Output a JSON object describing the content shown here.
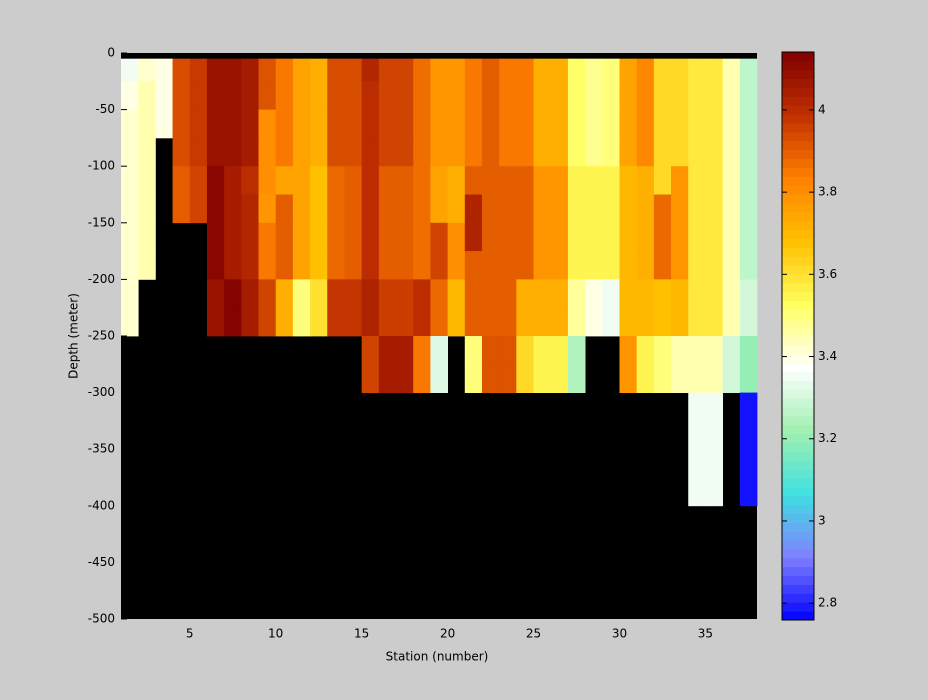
{
  "chart_data": {
    "type": "heatmap",
    "xlabel": "Station (number)",
    "ylabel": "Depth (meter)",
    "x": [
      1,
      2,
      3,
      4,
      5,
      6,
      7,
      8,
      9,
      10,
      11,
      12,
      13,
      14,
      15,
      16,
      17,
      18,
      19,
      20,
      21,
      22,
      23,
      24,
      25,
      26,
      27,
      28,
      29,
      30,
      31,
      32,
      33,
      34,
      35,
      36,
      37,
      38
    ],
    "y": [
      -5,
      -25,
      -50,
      -75,
      -100,
      -125,
      -150,
      -175,
      -200,
      -225,
      -250,
      -275,
      -300,
      -325,
      -350,
      -375,
      -400
    ],
    "z": [
      [
        3.35,
        3.42,
        3.4,
        3.93,
        3.97,
        4.08,
        4.08,
        4.05,
        3.92,
        3.85,
        3.75,
        3.72,
        3.93,
        3.93,
        4.02,
        3.95,
        3.95,
        3.87,
        3.78,
        3.78,
        3.85,
        3.9,
        3.85,
        3.85,
        3.72,
        3.72,
        3.52,
        3.48,
        3.5,
        3.75,
        3.82,
        3.62,
        3.62,
        3.58,
        3.58,
        3.45,
        3.27
      ],
      [
        3.4,
        3.45,
        3.4,
        3.93,
        3.97,
        4.08,
        4.08,
        4.05,
        3.92,
        3.85,
        3.75,
        3.72,
        3.93,
        3.93,
        4.0,
        3.95,
        3.95,
        3.87,
        3.78,
        3.78,
        3.85,
        3.9,
        3.85,
        3.85,
        3.72,
        3.72,
        3.52,
        3.48,
        3.5,
        3.75,
        3.82,
        3.62,
        3.62,
        3.58,
        3.58,
        3.45,
        3.27
      ],
      [
        3.42,
        3.45,
        3.4,
        3.93,
        3.97,
        4.08,
        4.08,
        4.05,
        3.8,
        3.85,
        3.75,
        3.72,
        3.93,
        3.93,
        4.0,
        3.95,
        3.95,
        3.87,
        3.78,
        3.78,
        3.85,
        3.9,
        3.85,
        3.85,
        3.72,
        3.72,
        3.52,
        3.48,
        3.5,
        3.75,
        3.82,
        3.62,
        3.62,
        3.58,
        3.58,
        3.45,
        3.27
      ],
      [
        3.42,
        3.45,
        null,
        3.93,
        3.97,
        4.08,
        4.08,
        4.05,
        3.8,
        3.85,
        3.75,
        3.72,
        3.93,
        3.93,
        4.0,
        3.95,
        3.95,
        3.87,
        3.78,
        3.78,
        3.85,
        3.9,
        3.85,
        3.85,
        3.72,
        3.72,
        3.52,
        3.48,
        3.5,
        3.75,
        3.82,
        3.62,
        3.62,
        3.58,
        3.58,
        3.45,
        3.27
      ],
      [
        3.42,
        3.45,
        null,
        3.9,
        3.95,
        4.12,
        4.05,
        4.0,
        3.8,
        3.75,
        3.75,
        3.68,
        3.88,
        3.9,
        4.0,
        3.9,
        3.9,
        3.87,
        3.75,
        3.72,
        3.9,
        3.9,
        3.9,
        3.9,
        3.78,
        3.78,
        3.55,
        3.55,
        3.55,
        3.7,
        3.72,
        3.62,
        3.78,
        3.58,
        3.58,
        3.45,
        3.27
      ],
      [
        3.42,
        3.45,
        null,
        3.9,
        3.95,
        4.12,
        4.05,
        4.02,
        3.78,
        3.9,
        3.75,
        3.68,
        3.88,
        3.9,
        4.0,
        3.9,
        3.9,
        3.87,
        3.75,
        3.72,
        4.03,
        3.9,
        3.9,
        3.9,
        3.78,
        3.78,
        3.55,
        3.55,
        3.55,
        3.7,
        3.72,
        3.88,
        3.78,
        3.58,
        3.58,
        3.45,
        3.27
      ],
      [
        3.42,
        3.45,
        null,
        null,
        null,
        4.12,
        4.05,
        4.02,
        3.85,
        3.9,
        3.75,
        3.68,
        3.88,
        3.9,
        4.0,
        3.9,
        3.9,
        3.87,
        3.95,
        3.8,
        4.03,
        3.9,
        3.9,
        3.9,
        3.78,
        3.78,
        3.55,
        3.55,
        3.55,
        3.7,
        3.72,
        3.88,
        3.78,
        3.58,
        3.58,
        3.45,
        3.27
      ],
      [
        3.42,
        3.45,
        null,
        null,
        null,
        4.12,
        4.05,
        4.02,
        3.85,
        3.9,
        3.75,
        3.68,
        3.88,
        3.9,
        4.0,
        3.9,
        3.9,
        3.87,
        3.95,
        3.8,
        3.9,
        3.9,
        3.9,
        3.9,
        3.78,
        3.78,
        3.55,
        3.55,
        3.55,
        3.7,
        3.72,
        3.88,
        3.78,
        3.58,
        3.58,
        3.45,
        3.27
      ],
      [
        3.42,
        null,
        null,
        null,
        null,
        4.08,
        4.13,
        4.05,
        3.95,
        3.72,
        3.5,
        3.6,
        3.98,
        3.98,
        4.03,
        3.96,
        3.96,
        4.0,
        3.88,
        3.7,
        3.9,
        3.9,
        3.9,
        3.72,
        3.72,
        3.72,
        3.47,
        3.4,
        3.35,
        3.7,
        3.7,
        3.68,
        3.7,
        3.58,
        3.58,
        3.45,
        3.3
      ],
      [
        3.42,
        null,
        null,
        null,
        null,
        4.08,
        4.13,
        4.05,
        3.95,
        3.72,
        3.5,
        3.6,
        3.98,
        3.98,
        4.03,
        3.96,
        3.96,
        4.0,
        3.88,
        3.7,
        3.9,
        3.9,
        3.9,
        3.72,
        3.72,
        3.72,
        3.47,
        3.4,
        3.35,
        3.7,
        3.7,
        3.68,
        3.7,
        3.58,
        3.58,
        3.45,
        3.3
      ],
      [
        null,
        null,
        null,
        null,
        null,
        null,
        null,
        null,
        null,
        null,
        null,
        null,
        null,
        null,
        3.95,
        4.05,
        4.05,
        3.85,
        3.32,
        null,
        3.5,
        3.92,
        3.92,
        3.62,
        3.55,
        3.55,
        3.25,
        null,
        null,
        3.78,
        3.55,
        3.5,
        3.45,
        3.45,
        3.45,
        3.3,
        3.2
      ],
      [
        null,
        null,
        null,
        null,
        null,
        null,
        null,
        null,
        null,
        null,
        null,
        null,
        null,
        null,
        3.95,
        4.05,
        4.05,
        3.85,
        3.32,
        null,
        3.5,
        3.92,
        3.92,
        3.62,
        3.55,
        3.55,
        3.25,
        null,
        null,
        3.78,
        3.55,
        3.5,
        3.45,
        3.45,
        3.45,
        3.3,
        3.2
      ],
      [
        null,
        null,
        null,
        null,
        null,
        null,
        null,
        null,
        null,
        null,
        null,
        null,
        null,
        null,
        null,
        null,
        null,
        null,
        null,
        null,
        null,
        null,
        null,
        null,
        null,
        null,
        null,
        null,
        null,
        null,
        null,
        null,
        null,
        3.35,
        3.35,
        null,
        2.78
      ],
      [
        null,
        null,
        null,
        null,
        null,
        null,
        null,
        null,
        null,
        null,
        null,
        null,
        null,
        null,
        null,
        null,
        null,
        null,
        null,
        null,
        null,
        null,
        null,
        null,
        null,
        null,
        null,
        null,
        null,
        null,
        null,
        null,
        null,
        3.35,
        3.35,
        null,
        2.78
      ],
      [
        null,
        null,
        null,
        null,
        null,
        null,
        null,
        null,
        null,
        null,
        null,
        null,
        null,
        null,
        null,
        null,
        null,
        null,
        null,
        null,
        null,
        null,
        null,
        null,
        null,
        null,
        null,
        null,
        null,
        null,
        null,
        null,
        null,
        3.35,
        3.35,
        null,
        2.78
      ],
      [
        null,
        null,
        null,
        null,
        null,
        null,
        null,
        null,
        null,
        null,
        null,
        null,
        null,
        null,
        null,
        null,
        null,
        null,
        null,
        null,
        null,
        null,
        null,
        null,
        null,
        null,
        null,
        null,
        null,
        null,
        null,
        null,
        null,
        3.35,
        3.35,
        null,
        2.78
      ]
    ],
    "xlim": [
      1,
      38
    ],
    "xticks": [
      5,
      10,
      15,
      20,
      25,
      30,
      35
    ],
    "ylim": [
      -500,
      0
    ],
    "yticks": [
      -500,
      -450,
      -400,
      -350,
      -300,
      -250,
      -200,
      -150,
      -100,
      -50,
      0
    ],
    "clim": [
      2.759,
      4.141
    ],
    "cticks": [
      2.8,
      3,
      3.2,
      3.4,
      3.6,
      3.8,
      4
    ],
    "colormap": [
      "#0000ff",
      "#8080ff",
      "#40e0e0",
      "#a0f0b0",
      "#ffffff",
      "#ffff60",
      "#ffc000",
      "#ff8000",
      "#c03000",
      "#800000"
    ],
    "nan_color": "#000000",
    "colorbar": true
  }
}
